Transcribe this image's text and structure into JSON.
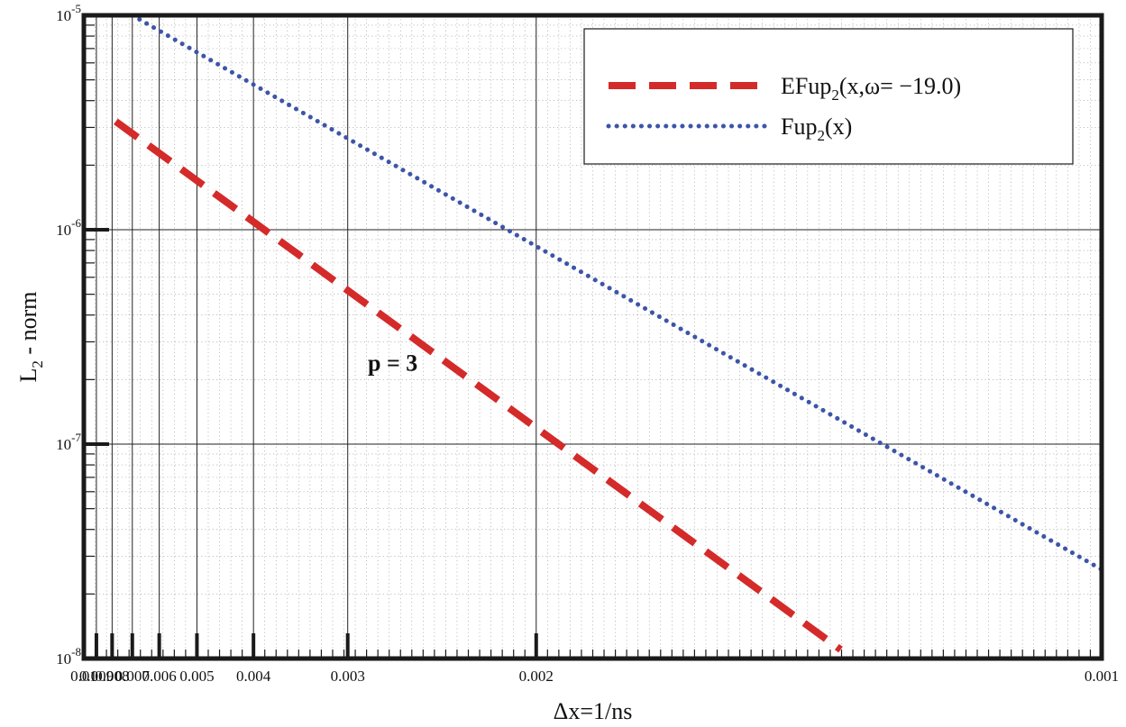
{
  "chart_data": {
    "type": "line",
    "xscale": "reciprocal",
    "yscale": "log",
    "xlim": [
      0.01,
      0.001
    ],
    "ylim": [
      1e-08,
      1e-05
    ],
    "grid": true,
    "xlabel": "Δx=1/ns",
    "ylabel": {
      "main": "L",
      "sub": "2",
      "rest": " - norm"
    },
    "x_ticks": [
      {
        "value": 0.01,
        "label": "0.01"
      },
      {
        "value": 0.009,
        "label": "0.009"
      },
      {
        "value": 0.008,
        "label": "0.008"
      },
      {
        "value": 0.007,
        "label": "0.007"
      },
      {
        "value": 0.006,
        "label": "0.006"
      },
      {
        "value": 0.005,
        "label": "0.005"
      },
      {
        "value": 0.004,
        "label": "0.004"
      },
      {
        "value": 0.003,
        "label": "0.003"
      },
      {
        "value": 0.002,
        "label": "0.002"
      },
      {
        "value": 0.001,
        "label": "0.001"
      }
    ],
    "y_ticks": [
      {
        "value": 1e-05,
        "base": "10",
        "exp": "-5"
      },
      {
        "value": 1e-06,
        "base": "10",
        "exp": "-6"
      },
      {
        "value": 1e-07,
        "base": "10",
        "exp": "-7"
      },
      {
        "value": 1e-08,
        "base": "10",
        "exp": "-8"
      }
    ],
    "series": [
      {
        "name": "EFup2(x,ω= −19.0)",
        "legend": {
          "main": "EFup",
          "sub": "2",
          "rest": "(x,ω= −19.0)"
        },
        "style": "dashed",
        "color": "#d42a2a",
        "x": [
          0.0078,
          0.0013
        ],
        "y": [
          3.2e-06,
          1.1e-08
        ]
      },
      {
        "name": "Fup2(x)",
        "legend": {
          "main": "Fup",
          "sub": "2",
          "rest": "(x)"
        },
        "style": "dotted",
        "color": "#3d55a8",
        "x": [
          0.007,
          0.001
        ],
        "y": [
          1e-05,
          2.6e-08
        ]
      }
    ],
    "legend_position": "top-right",
    "annotations": [
      {
        "text": "p = 3",
        "x": 0.0026,
        "y": 2.4e-07
      }
    ]
  }
}
